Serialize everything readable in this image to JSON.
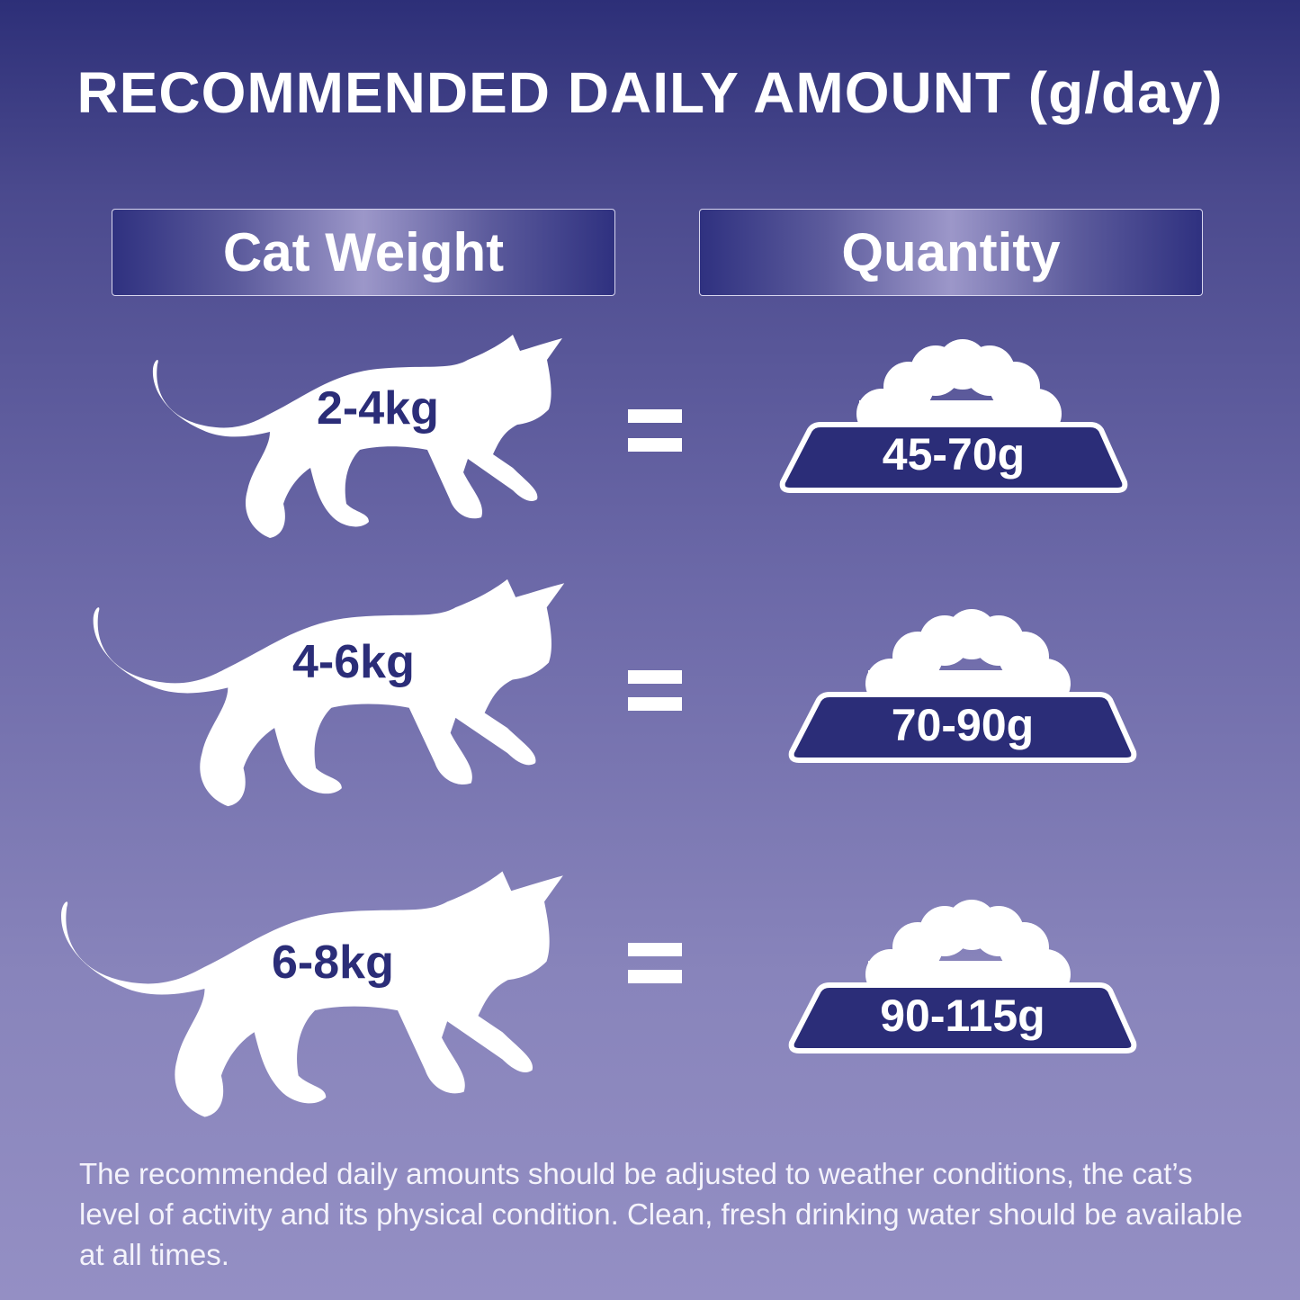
{
  "title": "RECOMMENDED DAILY AMOUNT (g/day)",
  "headers": {
    "weight": "Cat Weight",
    "quantity": "Quantity"
  },
  "rows": [
    {
      "weight": "2-4kg",
      "quantity": "45-70g"
    },
    {
      "weight": "4-6kg",
      "quantity": "70-90g"
    },
    {
      "weight": "6-8kg",
      "quantity": "90-115g"
    }
  ],
  "note": "The recommended daily amounts should be adjusted to weather conditions, the cat’s level of activity and its physical condition. Clean, fresh drinking water should be available at all times.",
  "icons": {
    "cat": "cat-silhouette-icon",
    "bowl": "food-bowl-icon",
    "equals": "equals-icon"
  },
  "colors": {
    "navy": "#2b2d78",
    "background_top": "#2d2f78",
    "background_bottom": "#948fc4"
  }
}
